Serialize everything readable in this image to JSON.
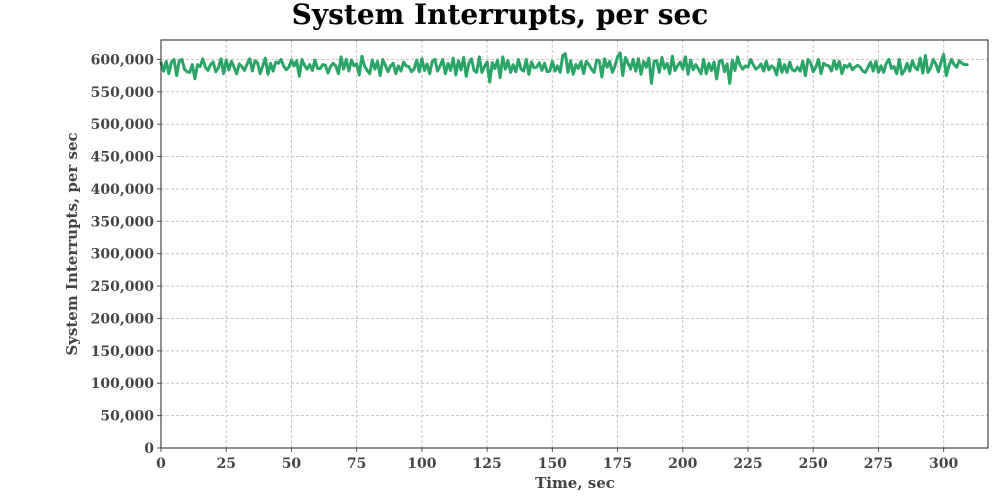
{
  "chart_data": {
    "type": "line",
    "title": "System Interrupts, per sec",
    "xlabel": "Time, sec",
    "ylabel": "System Interrupts, per sec",
    "xlim": [
      0,
      317
    ],
    "ylim": [
      0,
      630000
    ],
    "x_ticks": [
      "0",
      "25",
      "50",
      "75",
      "100",
      "125",
      "150",
      "175",
      "200",
      "225",
      "250",
      "275",
      "300"
    ],
    "y_ticks": [
      "0",
      "50,000",
      "100,000",
      "150,000",
      "200,000",
      "250,000",
      "300,000",
      "350,000",
      "400,000",
      "450,000",
      "500,000",
      "550,000",
      "600,000"
    ],
    "grid": true,
    "legend": "none",
    "series": [
      {
        "color": "#2aa566",
        "x_start": 0,
        "x_step": 1,
        "values": [
          595000,
          582000,
          597000,
          578000,
          596000,
          600000,
          575000,
          598000,
          600000,
          585000,
          581000,
          580000,
          592000,
          570000,
          592000,
          589000,
          601000,
          588000,
          583000,
          592000,
          596000,
          581000,
          587000,
          601000,
          578000,
          599000,
          584000,
          597000,
          588000,
          578000,
          593000,
          589000,
          583000,
          593000,
          601000,
          582000,
          598000,
          595000,
          578000,
          590000,
          602000,
          577000,
          594000,
          582000,
          596000,
          594000,
          600000,
          590000,
          584000,
          588000,
          599000,
          590000,
          598000,
          574000,
          600000,
          591000,
          585000,
          592000,
          583000,
          599000,
          586000,
          586000,
          592000,
          591000,
          579000,
          589000,
          594000,
          590000,
          578000,
          604000,
          585000,
          600000,
          582000,
          599000,
          590000,
          593000,
          576000,
          605000,
          590000,
          583000,
          578000,
          599000,
          585000,
          597000,
          575000,
          600000,
          591000,
          581000,
          590000,
          594000,
          578000,
          590000,
          582000,
          596000,
          590000,
          589000,
          581000,
          585000,
          599000,
          581000,
          601000,
          583000,
          593000,
          578000,
          597000,
          600000,
          582000,
          590000,
          600000,
          578000,
          594000,
          583000,
          602000,
          576000,
          598000,
          584000,
          603000,
          574000,
          594000,
          601000,
          583000,
          580000,
          604000,
          580000,
          589000,
          596000,
          565000,
          595000,
          586000,
          599000,
          572000,
          604000,
          585000,
          598000,
          580000,
          592000,
          581000,
          600000,
          585000,
          582000,
          600000,
          577000,
          596000,
          587000,
          588000,
          595000,
          583000,
          594000,
          581000,
          582000,
          597000,
          582000,
          590000,
          580000,
          606000,
          609000,
          580000,
          598000,
          577000,
          592000,
          586000,
          597000,
          578000,
          597000,
          592000,
          585000,
          580000,
          599000,
          598000,
          573000,
          601000,
          588000,
          597000,
          580000,
          590000,
          604000,
          610000,
          575000,
          603000,
          594000,
          585000,
          600000,
          582000,
          601000,
          577000,
          597000,
          588000,
          602000,
          563000,
          597000,
          598000,
          580000,
          603000,
          586000,
          594000,
          578000,
          605000,
          583000,
          590000,
          596000,
          585000,
          604000,
          577000,
          599000,
          584000,
          592000,
          585000,
          578000,
          600000,
          578000,
          594000,
          583000,
          596000,
          570000,
          597000,
          599000,
          581000,
          593000,
          563000,
          599000,
          583000,
          604000,
          591000,
          585000,
          590000,
          588000,
          600000,
          592000,
          585000,
          588000,
          593000,
          582000,
          597000,
          584000,
          590000,
          587000,
          576000,
          600000,
          580000,
          592000,
          580000,
          596000,
          584000,
          582000,
          588000,
          582000,
          597000,
          575000,
          600000,
          595000,
          581000,
          588000,
          600000,
          578000,
          594000,
          591000,
          590000,
          582000,
          598000,
          585000,
          597000,
          578000,
          591000,
          588000,
          593000,
          584000,
          588000,
          591000,
          588000,
          582000,
          580000,
          588000,
          596000,
          582000,
          597000,
          580000,
          590000,
          580000,
          594000,
          600000,
          586000,
          589000,
          578000,
          600000,
          577000,
          583000,
          594000,
          582000,
          598000,
          588000,
          584000,
          602000,
          579000,
          606000,
          580000,
          587000,
          600000,
          593000,
          581000,
          596000,
          608000,
          575000,
          590000,
          600000,
          592000,
          588000,
          598000,
          594000,
          592000,
          592000
        ]
      }
    ]
  }
}
